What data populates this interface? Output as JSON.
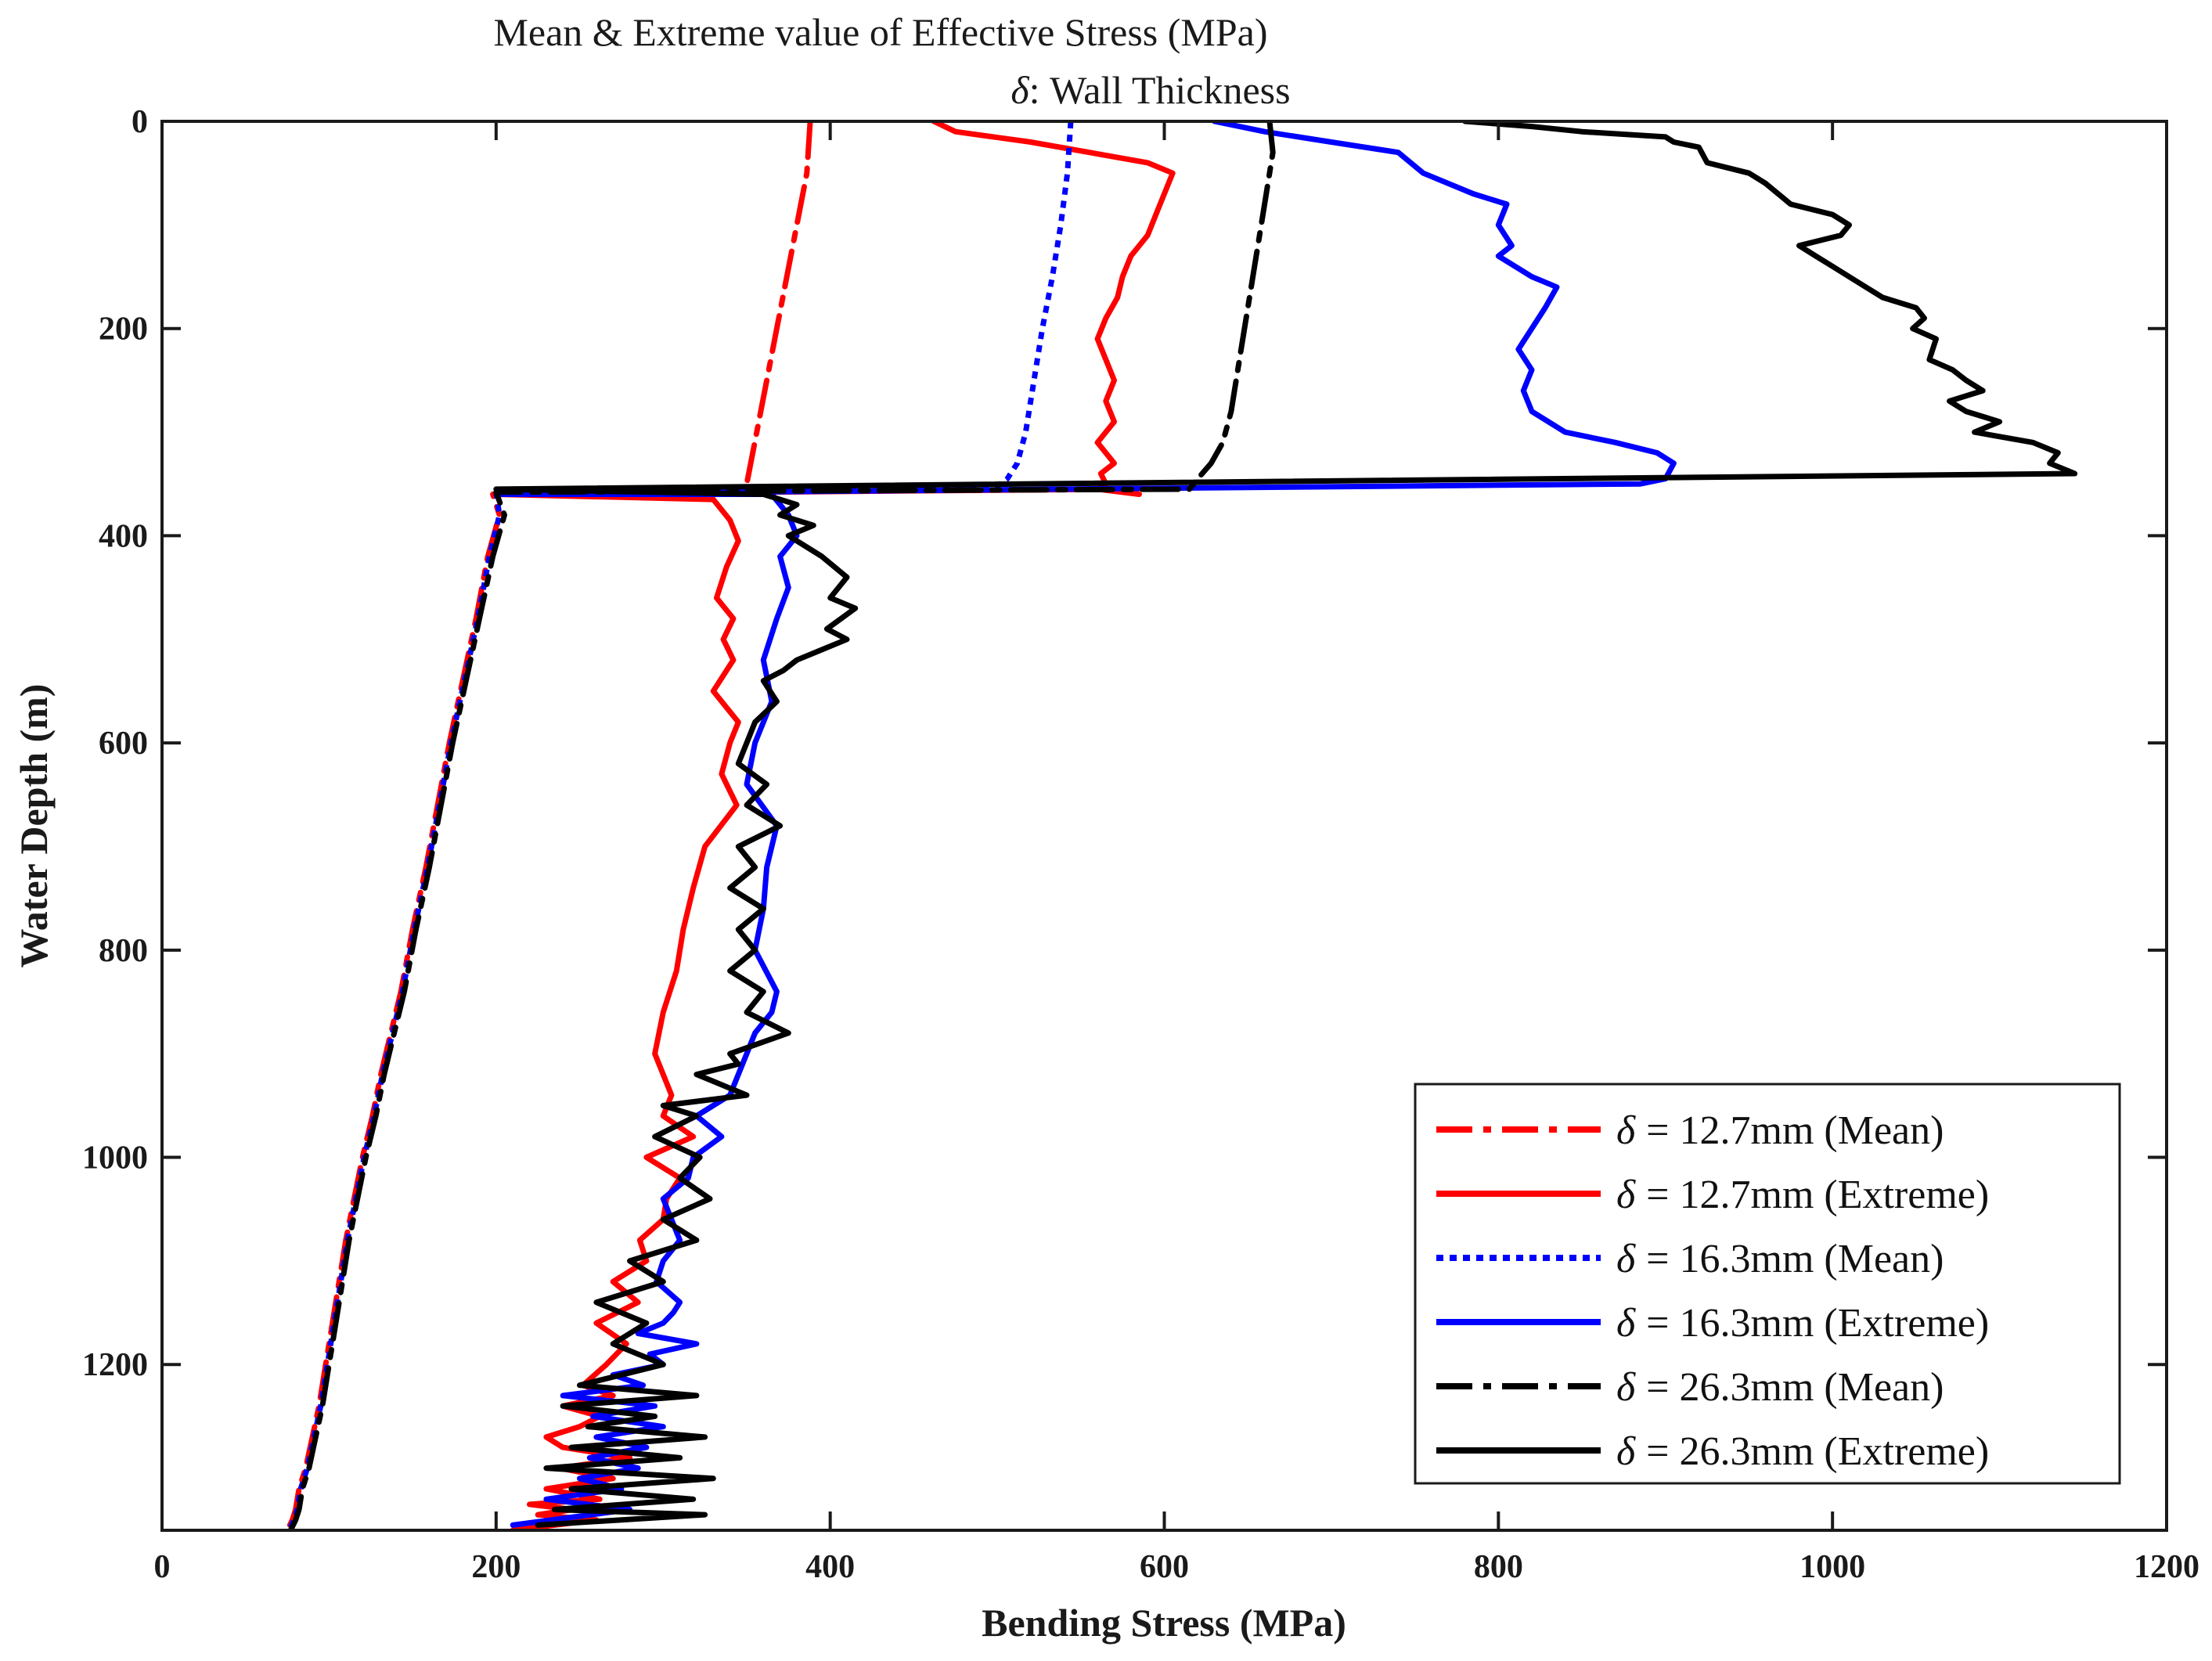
{
  "chart_data": {
    "type": "line",
    "title": "Mean & Extreme value of Effective Stress (MPa)",
    "subtitle_symbol": "δ",
    "subtitle_text": ": Wall Thickness",
    "xlabel": "Bending Stress (MPa)",
    "ylabel": "Water Depth (m)",
    "xlim": [
      0,
      1200
    ],
    "ylim": [
      1360,
      0
    ],
    "y_reversed": true,
    "x_ticks": [
      0,
      200,
      400,
      600,
      800,
      1000,
      1200
    ],
    "y_ticks": [
      0,
      200,
      400,
      600,
      800,
      1000,
      1200
    ],
    "legend_position": "bottom-right",
    "legend_symbol": "δ",
    "series": [
      {
        "name": "= 12.7mm (Mean)",
        "color": "#ff0000",
        "style": "dashdot",
        "x": [
          388,
          386,
          380,
          374,
          368,
          362,
          356,
          350,
          345,
          340,
          336,
          331,
          198,
          202,
          195,
          188,
          180,
          172,
          165,
          158,
          150,
          143,
          137,
          131,
          126,
          120,
          115,
          110,
          106,
          102,
          98,
          94,
          90,
          86,
          82,
          80,
          78,
          75
        ],
        "y": [
          0,
          50,
          100,
          150,
          200,
          250,
          300,
          350,
          355,
          360,
          358,
          358,
          360,
          380,
          420,
          480,
          540,
          600,
          660,
          720,
          780,
          840,
          880,
          920,
          960,
          1000,
          1040,
          1080,
          1120,
          1160,
          1200,
          1240,
          1270,
          1300,
          1320,
          1340,
          1350,
          1360
        ]
      },
      {
        "name": "= 12.7mm (Extreme)",
        "color": "#ff0000",
        "style": "solid",
        "x": [
          462,
          475,
          520,
          590,
          605,
          600,
          595,
          590,
          580,
          575,
          572,
          565,
          560,
          565,
          570,
          565,
          570,
          560,
          570,
          562,
          565,
          560,
          585,
          575,
          200,
          330,
          340,
          345,
          338,
          332,
          342,
          336,
          342,
          330,
          345,
          340,
          335,
          344,
          325,
          318,
          312,
          308,
          300,
          295,
          305,
          300,
          318,
          290,
          310,
          302,
          300,
          286,
          290,
          270,
          285,
          260,
          278,
          266,
          252,
          270,
          240,
          262,
          250,
          230,
          240,
          280,
          238,
          270,
          230,
          262,
          220,
          246,
          225,
          260,
          210
        ],
        "y": [
          0,
          10,
          20,
          40,
          50,
          70,
          90,
          110,
          130,
          150,
          170,
          190,
          210,
          230,
          250,
          270,
          290,
          310,
          330,
          340,
          350,
          355,
          360,
          355,
          360,
          365,
          385,
          405,
          430,
          460,
          480,
          500,
          520,
          550,
          580,
          600,
          630,
          660,
          700,
          740,
          780,
          820,
          860,
          900,
          940,
          960,
          980,
          1000,
          1020,
          1040,
          1060,
          1080,
          1100,
          1120,
          1140,
          1160,
          1180,
          1200,
          1220,
          1230,
          1240,
          1250,
          1260,
          1270,
          1280,
          1290,
          1300,
          1310,
          1320,
          1330,
          1335,
          1340,
          1345,
          1350,
          1360
        ]
      },
      {
        "name": "= 16.3mm (Mean)",
        "color": "#0000ff",
        "style": "dotted",
        "x": [
          544,
          542,
          538,
          533,
          527,
          522,
          517,
          512,
          506,
          500,
          495,
          200,
          202,
          196,
          189,
          181,
          173,
          166,
          159,
          151,
          144,
          138,
          132,
          127,
          121,
          116,
          111,
          107,
          103,
          99,
          95,
          91,
          87,
          83,
          81,
          79,
          76
        ],
        "y": [
          0,
          50,
          100,
          150,
          200,
          250,
          300,
          330,
          345,
          352,
          355,
          358,
          380,
          420,
          480,
          540,
          600,
          660,
          720,
          780,
          840,
          880,
          920,
          960,
          1000,
          1040,
          1080,
          1120,
          1160,
          1200,
          1240,
          1270,
          1300,
          1320,
          1340,
          1350,
          1360
        ]
      },
      {
        "name": "= 16.3mm (Extreme)",
        "color": "#0000ff",
        "style": "solid",
        "x": [
          630,
          660,
          700,
          740,
          755,
          785,
          805,
          800,
          808,
          800,
          820,
          835,
          828,
          820,
          812,
          820,
          815,
          820,
          840,
          870,
          895,
          905,
          900,
          885,
          200,
          365,
          375,
          380,
          370,
          375,
          368,
          360,
          365,
          355,
          350,
          368,
          362,
          360,
          355,
          368,
          365,
          355,
          350,
          345,
          340,
          320,
          335,
          318,
          315,
          300,
          305,
          310,
          300,
          296,
          310,
          306,
          300,
          285,
          320,
          292,
          300,
          270,
          288,
          240,
          295,
          258,
          300,
          260,
          290,
          256,
          285,
          250,
          275,
          230,
          280,
          210
        ],
        "y": [
          0,
          10,
          20,
          30,
          50,
          70,
          80,
          100,
          120,
          130,
          150,
          160,
          180,
          200,
          220,
          240,
          260,
          280,
          300,
          310,
          320,
          330,
          345,
          350,
          360,
          360,
          380,
          400,
          420,
          450,
          480,
          520,
          560,
          600,
          640,
          680,
          720,
          760,
          800,
          840,
          860,
          880,
          900,
          920,
          940,
          960,
          980,
          1000,
          1020,
          1040,
          1060,
          1080,
          1100,
          1120,
          1140,
          1150,
          1160,
          1170,
          1180,
          1190,
          1200,
          1210,
          1220,
          1230,
          1240,
          1250,
          1260,
          1270,
          1280,
          1290,
          1300,
          1310,
          1320,
          1330,
          1340,
          1355
        ]
      },
      {
        "name": "= 26.3mm (Mean)",
        "color": "#000000",
        "style": "dashdot",
        "x": [
          663,
          665,
          660,
          655,
          650,
          645,
          640,
          635,
          628,
          620,
          615,
          200,
          205,
          198,
          190,
          182,
          174,
          167,
          160,
          152,
          145,
          139,
          133,
          128,
          122,
          117,
          112,
          108,
          104,
          100,
          96,
          92,
          88,
          84,
          82,
          80,
          77
        ],
        "y": [
          0,
          30,
          80,
          130,
          180,
          230,
          280,
          310,
          330,
          345,
          355,
          358,
          380,
          420,
          480,
          540,
          600,
          660,
          720,
          780,
          840,
          880,
          920,
          960,
          1000,
          1040,
          1080,
          1120,
          1160,
          1200,
          1240,
          1270,
          1300,
          1320,
          1340,
          1350,
          1360
        ]
      },
      {
        "name": "= 26.3mm (Extreme)",
        "color": "#000000",
        "style": "solid",
        "x": [
          780,
          820,
          850,
          900,
          905,
          920,
          925,
          950,
          960,
          975,
          1000,
          1010,
          1005,
          980,
          990,
          1000,
          1020,
          1030,
          1050,
          1055,
          1048,
          1062,
          1058,
          1072,
          1080,
          1090,
          1070,
          1080,
          1100,
          1085,
          1120,
          1135,
          1130,
          1145,
          200,
          360,
          380,
          370,
          390,
          375,
          395,
          410,
          400,
          415,
          398,
          410,
          395,
          380,
          372,
          360,
          368,
          355,
          350,
          345,
          362,
          350,
          370,
          345,
          355,
          340,
          360,
          345,
          355,
          340,
          360,
          350,
          375,
          340,
          345,
          320,
          350,
          300,
          320,
          295,
          322,
          310,
          328,
          300,
          320,
          280,
          300,
          260,
          290,
          270,
          300,
          250,
          320,
          240,
          295,
          255,
          325,
          245,
          310,
          230,
          330,
          245,
          318,
          235,
          325,
          225
        ],
        "y": [
          0,
          5,
          10,
          15,
          20,
          25,
          40,
          50,
          60,
          80,
          90,
          100,
          110,
          120,
          130,
          140,
          160,
          170,
          180,
          190,
          200,
          210,
          230,
          240,
          250,
          260,
          270,
          280,
          290,
          300,
          310,
          320,
          330,
          340,
          355,
          360,
          370,
          380,
          390,
          400,
          420,
          440,
          460,
          470,
          490,
          500,
          510,
          520,
          530,
          540,
          560,
          580,
          600,
          620,
          640,
          660,
          680,
          700,
          720,
          740,
          760,
          780,
          800,
          820,
          840,
          860,
          880,
          900,
          910,
          920,
          940,
          950,
          960,
          980,
          1000,
          1020,
          1040,
          1060,
          1080,
          1100,
          1120,
          1140,
          1160,
          1180,
          1200,
          1220,
          1230,
          1240,
          1250,
          1260,
          1270,
          1280,
          1290,
          1300,
          1310,
          1320,
          1330,
          1340,
          1345,
          1355
        ]
      }
    ]
  }
}
